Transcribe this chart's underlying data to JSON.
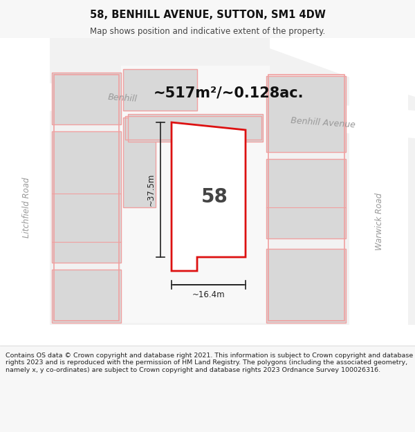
{
  "title": "58, BENHILL AVENUE, SUTTON, SM1 4DW",
  "subtitle": "Map shows position and indicative extent of the property.",
  "area_text": "~517m²/~0.128ac.",
  "dim_width": "~16.4m",
  "dim_height": "~37.5m",
  "number_label": "58",
  "footer": "Contains OS data © Crown copyright and database right 2021. This information is subject to Crown copyright and database rights 2023 and is reproduced with the permission of HM Land Registry. The polygons (including the associated geometry, namely x, y co-ordinates) are subject to Crown copyright and database rights 2023 Ordnance Survey 100026316.",
  "bg_color": "#f7f7f7",
  "map_bg": "#f0f0f0",
  "road_color": "#ffffff",
  "plot_fill": "#ffffff",
  "plot_edge": "#dd1111",
  "block_fill": "#d8d8d8",
  "block_edge": "#f0a0a0",
  "road_label_color": "#999999",
  "dim_color": "#222222",
  "title_color": "#111111"
}
